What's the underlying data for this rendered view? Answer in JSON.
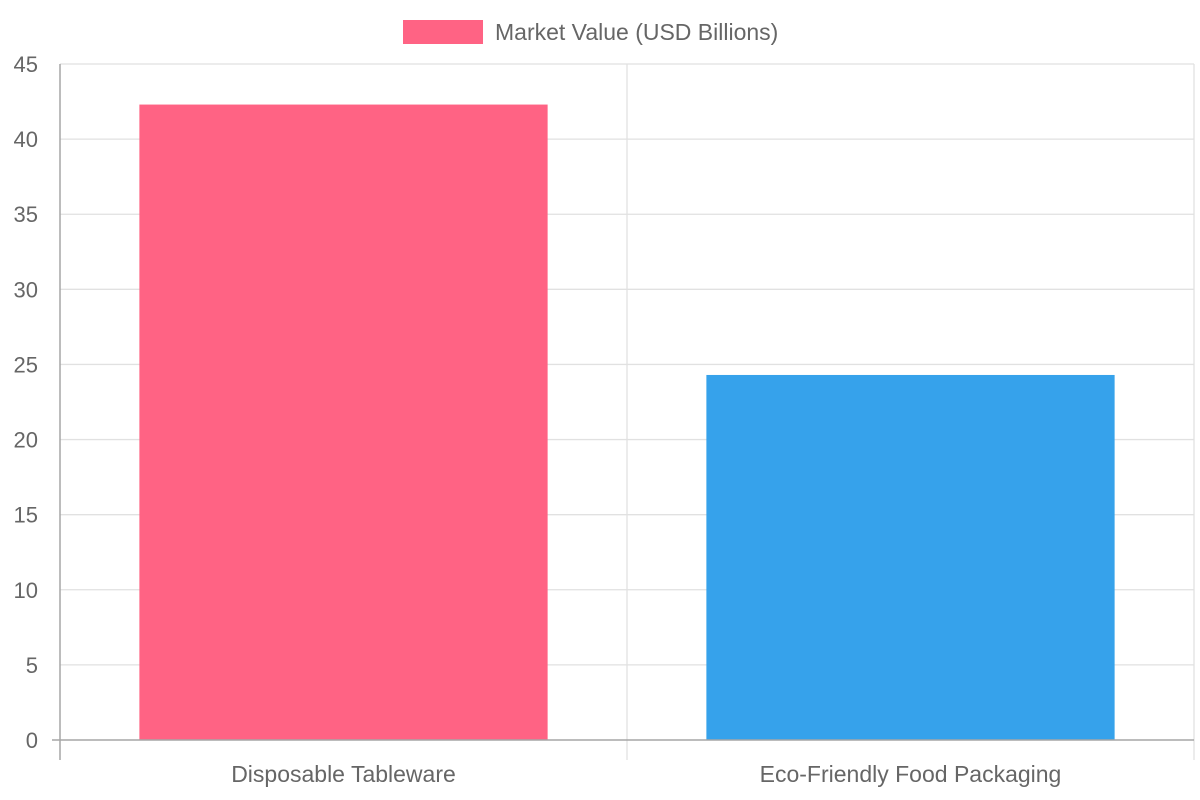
{
  "chart_data": {
    "type": "bar",
    "categories": [
      "Disposable Tableware",
      "Eco-Friendly Food Packaging"
    ],
    "series": [
      {
        "name": "Market Value (USD Billions)",
        "values": [
          42.3,
          24.3
        ],
        "colors": [
          "#ff6384",
          "#36a2eb"
        ]
      }
    ],
    "ylim": [
      0,
      45
    ],
    "yticks": [
      0,
      5,
      10,
      15,
      20,
      25,
      30,
      35,
      40,
      45
    ],
    "grid": true,
    "legend_position": "top"
  },
  "colors": {
    "grid": "#e1e1e1",
    "axis": "#a6a6a6",
    "text": "#666666",
    "legend_swatch": "#ff6384"
  }
}
